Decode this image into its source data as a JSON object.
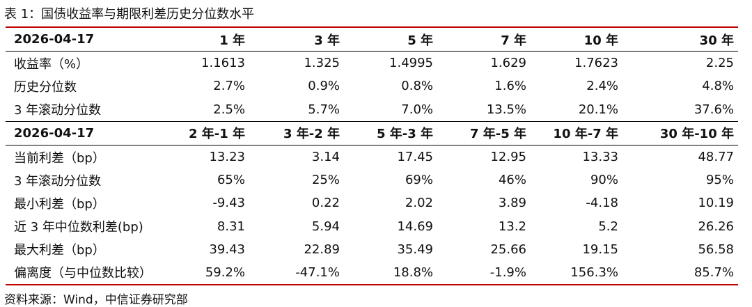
{
  "title": "表 1：国债收益率与期限利差历史分位数水平",
  "table": {
    "header1": [
      "2026-04-17",
      "1 年",
      "3 年",
      "5 年",
      "7 年",
      "10 年",
      "30 年"
    ],
    "rows1": [
      [
        "收益率（%）",
        "1.1613",
        "1.325",
        "1.4995",
        "1.629",
        "1.7623",
        "2.25"
      ],
      [
        "历史分位数",
        "2.7%",
        "0.9%",
        "0.8%",
        "1.6%",
        "2.4%",
        "4.8%"
      ],
      [
        "3 年滚动分位数",
        "2.5%",
        "5.7%",
        "7.0%",
        "13.5%",
        "20.1%",
        "37.6%"
      ]
    ],
    "header2": [
      "2026-04-17",
      "2 年-1 年",
      "3 年-2 年",
      "5 年-3 年",
      "7 年-5 年",
      "10 年-7 年",
      "30 年-10 年"
    ],
    "rows2": [
      [
        "当前利差（bp）",
        "13.23",
        "3.14",
        "17.45",
        "12.95",
        "13.33",
        "48.77"
      ],
      [
        "3 年滚动分位数",
        "65%",
        "25%",
        "69%",
        "46%",
        "90%",
        "95%"
      ],
      [
        "最小利差（bp）",
        "-9.43",
        "0.22",
        "2.02",
        "3.89",
        "-4.18",
        "10.19"
      ],
      [
        "近 3 年中位数利差(bp)",
        "8.31",
        "5.94",
        "14.69",
        "13.2",
        "5.2",
        "26.26"
      ],
      [
        "最大利差（bp）",
        "39.43",
        "22.89",
        "35.49",
        "25.66",
        "19.15",
        "56.58"
      ],
      [
        "偏离度（与中位数比较）",
        "59.2%",
        "-47.1%",
        "18.8%",
        "-1.9%",
        "156.3%",
        "85.7%"
      ]
    ]
  },
  "source": "资料来源：Wind，中信证券研究部"
}
